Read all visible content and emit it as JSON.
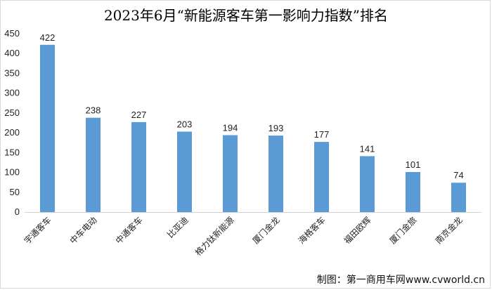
{
  "chart_data": {
    "type": "bar",
    "title": "2023年6月“新能源客车第一影响力指数”排名",
    "categories": [
      "宇通客车",
      "中车电动",
      "中通客车",
      "比亚迪",
      "格力钛新能源",
      "厦门金龙",
      "海格客车",
      "福田欧辉",
      "厦门金旅",
      "南京金龙"
    ],
    "values": [
      422,
      238,
      227,
      203,
      194,
      193,
      177,
      141,
      101,
      74
    ],
    "yticks": [
      "0",
      "50",
      "100",
      "150",
      "200",
      "250",
      "300",
      "350",
      "400",
      "450"
    ],
    "ylim": [
      0,
      450
    ],
    "grid": false,
    "bar_color": "#5b9bd5",
    "xlabel": "",
    "ylabel": ""
  },
  "credit": "制图：第一商用车网www.cvworld.cn"
}
